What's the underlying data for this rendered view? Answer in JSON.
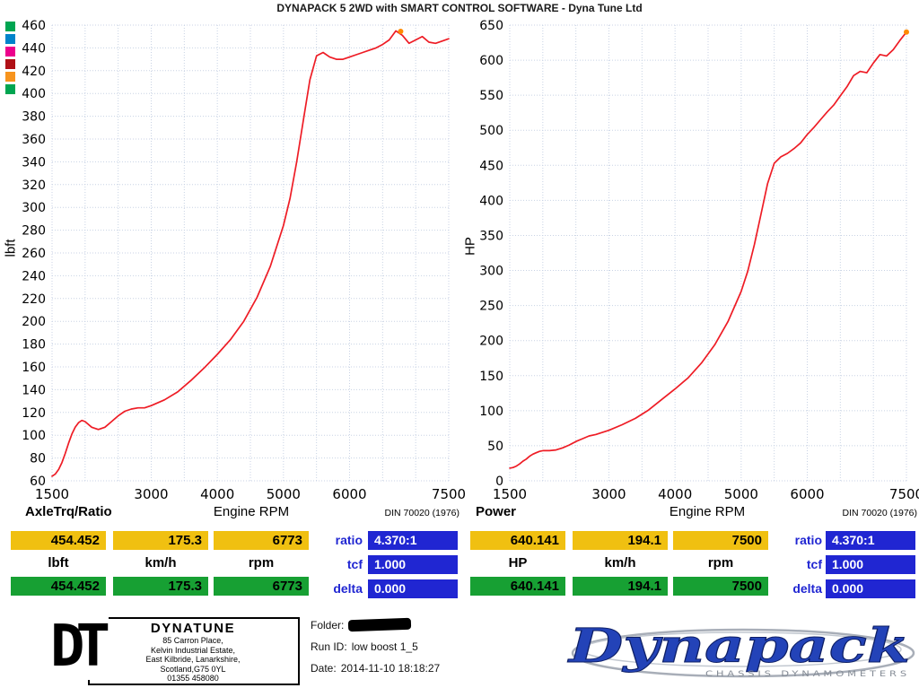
{
  "window": {
    "title": "DYNAPACK 5 2WD with SMART CONTROL SOFTWARE - Dyna Tune Ltd"
  },
  "legend_colors": [
    "#00a551",
    "#0083ca",
    "#ec008c",
    "#b01016",
    "#f7941d",
    "#00a551"
  ],
  "colors": {
    "curve": "#ee1c25",
    "yellow_box": "#f0c011",
    "green_box": "#17a033",
    "blue_box": "#2026d2",
    "marker": "#ff8a00"
  },
  "chart_data": [
    {
      "type": "line",
      "title": "AxleTrq/Ratio",
      "ylabel": "lbft",
      "xlabel": "Engine RPM",
      "standard_note": "DIN 70020 (1976)",
      "xlim": [
        1500,
        7500
      ],
      "ylim": [
        60,
        460
      ],
      "ytick_step": 20,
      "xticks": [
        1500,
        3000,
        4000,
        5000,
        6000,
        7500
      ],
      "xgrid": 500,
      "grid": true,
      "series": [
        {
          "name": "axle-torque",
          "color": "#ee1c25",
          "x": [
            1500,
            1550,
            1600,
            1650,
            1700,
            1750,
            1800,
            1850,
            1900,
            1950,
            2000,
            2100,
            2200,
            2300,
            2400,
            2500,
            2600,
            2700,
            2800,
            2900,
            3000,
            3200,
            3400,
            3600,
            3800,
            4000,
            4200,
            4400,
            4600,
            4800,
            5000,
            5100,
            5200,
            5300,
            5400,
            5500,
            5600,
            5700,
            5800,
            5900,
            6000,
            6100,
            6200,
            6300,
            6400,
            6500,
            6600,
            6700,
            6800,
            6900,
            7000,
            7100,
            7200,
            7300,
            7400,
            7500
          ],
          "y": [
            64,
            66,
            70,
            76,
            84,
            93,
            101,
            107,
            111,
            113,
            112,
            107,
            105,
            107,
            112,
            117,
            121,
            123,
            124,
            124,
            126,
            131,
            138,
            148,
            159,
            171,
            184,
            200,
            221,
            248,
            284,
            308,
            340,
            376,
            412,
            433,
            436,
            432,
            430,
            430,
            432,
            434,
            436,
            438,
            440,
            443,
            447,
            455,
            451,
            444,
            447,
            450,
            445,
            444,
            446,
            448
          ]
        }
      ],
      "marker": {
        "x": 6773,
        "y": 454.452,
        "color": "#ff8a00"
      }
    },
    {
      "type": "line",
      "title": "Power",
      "ylabel": "HP",
      "xlabel": "Engine RPM",
      "standard_note": "DIN 70020 (1976)",
      "xlim": [
        1500,
        7500
      ],
      "ylim": [
        0,
        650
      ],
      "ytick_step": 50,
      "xticks": [
        1500,
        3000,
        4000,
        5000,
        6000,
        7500
      ],
      "xgrid": 500,
      "grid": true,
      "series": [
        {
          "name": "power",
          "color": "#ee1c25",
          "x": [
            1500,
            1550,
            1600,
            1650,
            1700,
            1750,
            1800,
            1850,
            1900,
            1950,
            2000,
            2100,
            2200,
            2300,
            2400,
            2500,
            2600,
            2700,
            2800,
            2900,
            3000,
            3200,
            3400,
            3600,
            3800,
            4000,
            4200,
            4400,
            4600,
            4800,
            5000,
            5100,
            5200,
            5300,
            5400,
            5500,
            5600,
            5700,
            5800,
            5900,
            6000,
            6100,
            6200,
            6300,
            6400,
            6500,
            6600,
            6700,
            6800,
            6900,
            7000,
            7100,
            7200,
            7300,
            7400,
            7500
          ],
          "y": [
            18,
            19,
            21,
            24,
            28,
            31,
            35,
            38,
            40,
            42,
            43,
            43,
            44,
            47,
            51,
            56,
            60,
            64,
            66,
            69,
            72,
            80,
            89,
            101,
            116,
            131,
            147,
            168,
            194,
            227,
            270,
            299,
            337,
            380,
            424,
            453,
            462,
            467,
            474,
            482,
            494,
            504,
            515,
            526,
            536,
            549,
            562,
            578,
            584,
            582,
            596,
            608,
            606,
            615,
            628,
            640
          ]
        }
      ],
      "marker": {
        "x": 7500,
        "y": 640.141,
        "color": "#ff8a00"
      }
    }
  ],
  "panels": [
    {
      "readout_yellow": [
        "454.452",
        "175.3",
        "6773"
      ],
      "readout_units": [
        "lbft",
        "km/h",
        "rpm"
      ],
      "readout_green": [
        "454.452",
        "175.3",
        "6773"
      ],
      "blue_rows": [
        {
          "label": "ratio",
          "value": "4.370:1"
        },
        {
          "label": "tcf",
          "value": "1.000"
        },
        {
          "label": "delta",
          "value": "0.000"
        }
      ]
    },
    {
      "readout_yellow": [
        "640.141",
        "194.1",
        "7500"
      ],
      "readout_units": [
        "HP",
        "km/h",
        "rpm"
      ],
      "readout_green": [
        "640.141",
        "194.1",
        "7500"
      ],
      "blue_rows": [
        {
          "label": "ratio",
          "value": "4.370:1"
        },
        {
          "label": "tcf",
          "value": "1.000"
        },
        {
          "label": "delta",
          "value": "0.000"
        }
      ]
    }
  ],
  "footer": {
    "dynatune": {
      "dt": "DT",
      "name": "DYNATUNE",
      "address": [
        "85 Carron Place,",
        "Kelvin Industrial Estate,",
        "East Kilbride, Lanarkshire,",
        "Scotland,G75 0YL",
        "01355 458080"
      ]
    },
    "run": {
      "folder_label": "Folder:",
      "run_id_label": "Run ID:",
      "run_id": "low boost 1_5",
      "date_label": "Date:",
      "date": "2014-11-10 18:18:27"
    },
    "dynapack": {
      "name": "Dynapack",
      "tagline": "CHASSIS DYNAMOMETERS"
    }
  }
}
